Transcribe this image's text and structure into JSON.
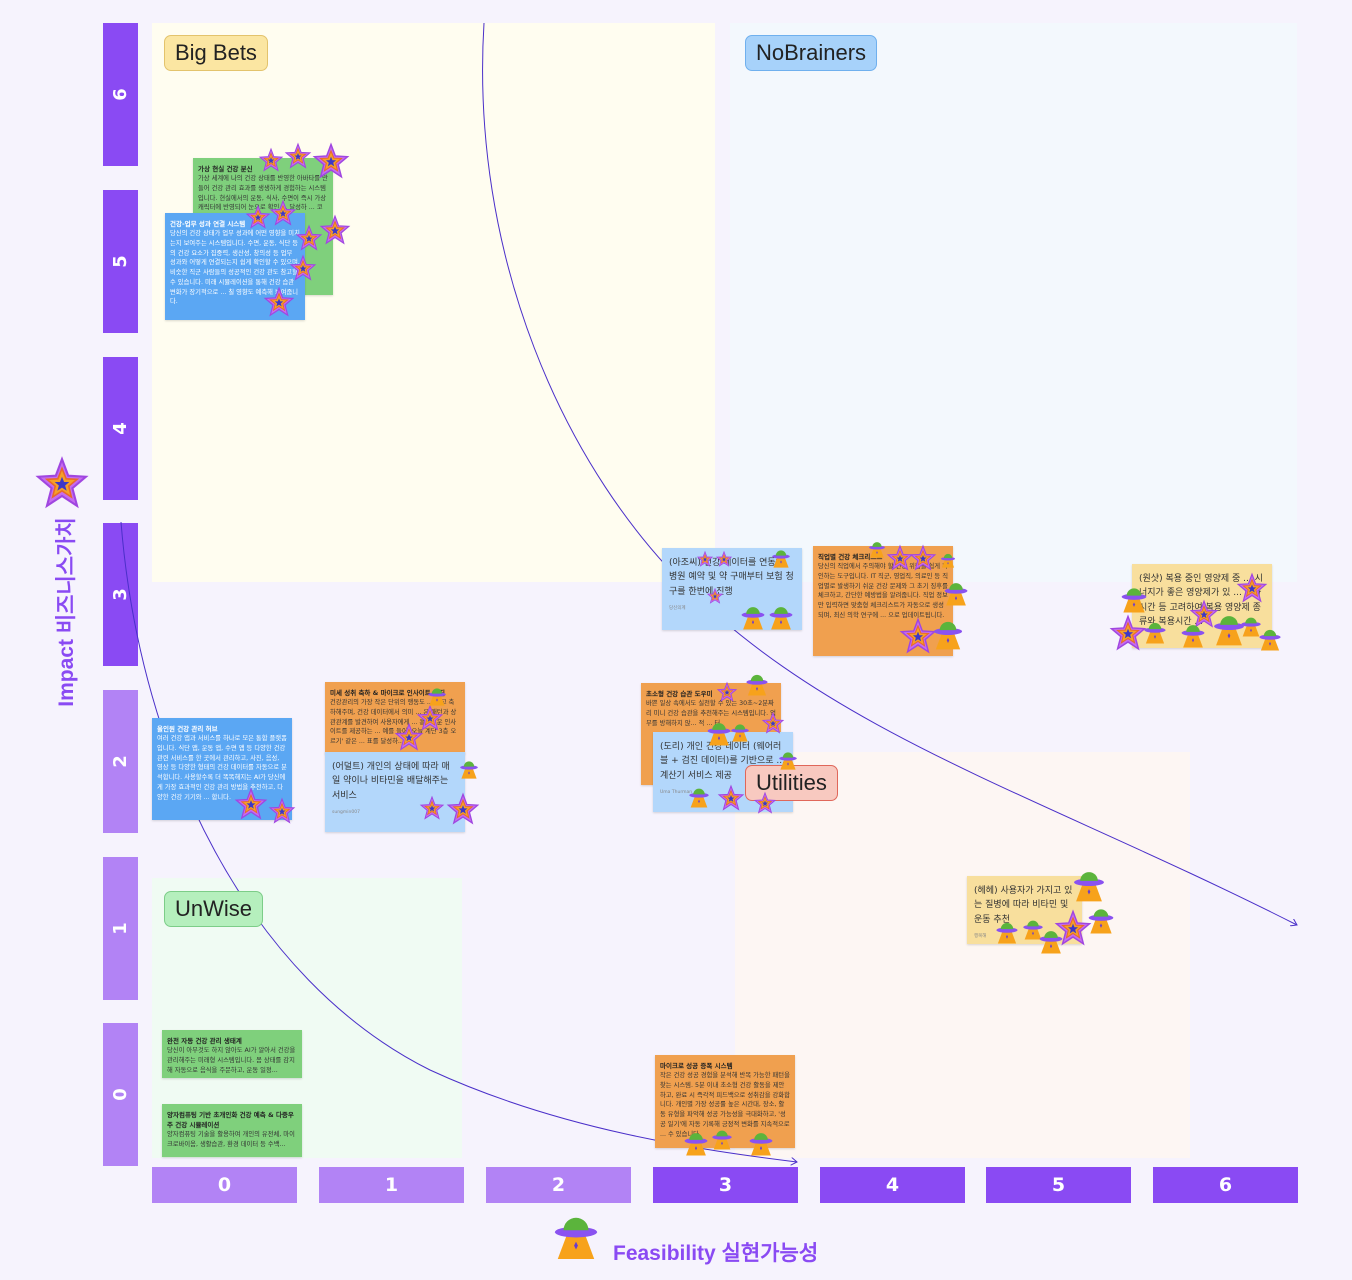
{
  "quadrants": {
    "big_bets": "Big Bets",
    "no_brainers": "NoBrainers",
    "unwise": "UnWise",
    "utilities": "Utilities"
  },
  "colors": {
    "axis_dark": "#8a4af3",
    "axis_light": "#b283f5",
    "big_bets_bg": "#fffdf0",
    "no_brainers_bg": "#f3f8fd",
    "unwise_bg": "#f0fbf3",
    "utilities_bg": "#fdf6f3"
  },
  "y_axis": {
    "title": "Impact 비즈니스가치",
    "ticks": [
      "6",
      "5",
      "4",
      "3",
      "2",
      "1",
      "0"
    ]
  },
  "x_axis": {
    "title": "Feasibility 실현가능성",
    "ticks": [
      "0",
      "1",
      "2",
      "3",
      "4",
      "5",
      "6"
    ]
  },
  "icons": {
    "impact_vote": "star-icon",
    "feasibility_vote": "ufo-icon"
  },
  "stickies": [
    {
      "title": "가상 현실 건강 분신",
      "body": "가상 세계에 나의 건강 상태를 반영한 아바타를 만들어 건강 관리 효과를 생생하게 경험하는 시스템입니다. 현실에서의 운동, 식사, 수면이 즉시 가상 캐릭터에 반영되어 눈으로 확인 ... 달성하 ... 코치 ... 혼신 ... 시 ... 수면에 즉..."
    },
    {
      "title": "건강-업무 성과 연결 시스템",
      "body": "당신의 건강 상태가 업무 성과에 어떤 영향을 미치는지 보여주는 시스템입니다. 수면, 운동, 식단 등의 건강 요소가 집중력, 생산성, 창의성 등 업무 성과와 어떻게 연결되는지 쉽게 확인할 수 있으며, 비슷한 직군 사람들의 성공적인 건강 관도 참고할 수 있습니다. 미래 시뮬레이션을 통해 건강 습관 변화가 장기적으로 ... 칠 영향도 예측해 보여줍니다."
    },
    {
      "title": "",
      "body": "(아조씨) 건강 데이터를 연동해 병원 예약 및 약 구매부터 보험 청구를 한번에 진행",
      "author": "당신의계"
    },
    {
      "title": "직업별 건강 체크리스트",
      "body": "당신의 직업에서 주의해야 할 건강 위험을 쉽게 확인하는 도구입니다. IT 직군, 영업직, 의료인 등 직업별로 발생하기 쉬운 건강 문제와 그 초기 징후를 체크하고, 간단한 예방법을 알려줍니다. 직업 정보만 입력하면 맞춤형 체크리스트가 자동으로 생성되며, 최신 의학 연구에 ... 으로 업데이트됩니다."
    },
    {
      "title": "",
      "body": "(원샷) 복용 중인 영양제 중 ... 시너지가 좋은 영양제가 있 ... 식사시간 등 고려하여 복용 영양제 종류와 복용시간 ..."
    },
    {
      "title": "올인원 건강 관리 허브",
      "body": "여러 건강 앱과 서비스를 하나로 모은 통합 플랫폼입니다. 식단 앱, 운동 앱, 수면 앱 등 다양한 건강 관련 서비스를 한 곳에서 관리하고, 사진, 음성, 영상 등 다양한 형태의 건강 데이터를 자동으로 분석합니다. 사용할수록 더 똑똑해지는 AI가 당신에게 가장 효과적인 건강 관리 방법을 추천하고, 다양한 건강 기기와 ... 합니다."
    },
    {
      "title": "미세 성취 축하 & 마이크로 인사이트 엔진",
      "body": "건강관리의 가장 작은 단위의 행동도 ... 하고 축하해주며, 건강 데이터에서 의미 ... 은 패턴과 상관관계를 발견하여 사용자에게 ... 흥미로운 인사이트를 제공하는 ... 예를 들어 '오늘 계단 3층 오르기' 같은 ... 표를 달성하..."
    },
    {
      "title": "",
      "body": "(어덜트) 개인의 상태에 따라 매일 약이나 비타민을 배달해주는 서비스",
      "author": "sungmin007"
    },
    {
      "title": "초소형 건강 습관 도우미",
      "body": "바쁜 일상 속에서도 실천할 수 있는 30초~2분짜리 미니 건강 습관을 추천해주는 시스템입니다. 업무를 방해하지 않... 적 ... 터"
    },
    {
      "title": "",
      "body": "(도리) 개인 건강 데이터 (웨어러블 + 검진 데이터)를 기반으로 ... 계산기 서비스 제공",
      "author": "Uma Thurman"
    },
    {
      "title": "",
      "body": "(헤헤) 사용자가 가지고 있는 질병에 따라 비타민 및 운동 추천",
      "author": "행복해"
    },
    {
      "title": "완전 자동 건강 관리 생태계",
      "body": "당신이 아무것도 하지 않아도 AI가 알아서 건강을 관리해주는 미래형 시스템입니다. 몸 상태를 감지해 자동으로 음식을 주문하고, 운동 일정..."
    },
    {
      "title": "양자컴퓨팅 기반 초개인화 건강 예측 & 다중우주 건강 시뮬레이션",
      "body": "양자컴퓨팅 기술을 활용하여 개인의 유전체, 마이크로바이옴, 생활습관, 환경 데이터 등 수백..."
    },
    {
      "title": "마이크로 성공 증폭 시스템",
      "body": "작은 건강 성공 경험을 분석해 반복 가능한 패턴을 찾는 시스템. 5분 이내 초소형 건강 활동을 제안하고, 완료 시 즉각적 피드백으로 성취감을 강화합니다. 개인별 가장 성공률 높은 시간대, 장소, 활동 유형을 파악해 성공 가능성을 극대화하고, '성공 일기'에 자동 기록해 긍정적 변화를 지속적으로 ... 수 있습니다."
    }
  ]
}
